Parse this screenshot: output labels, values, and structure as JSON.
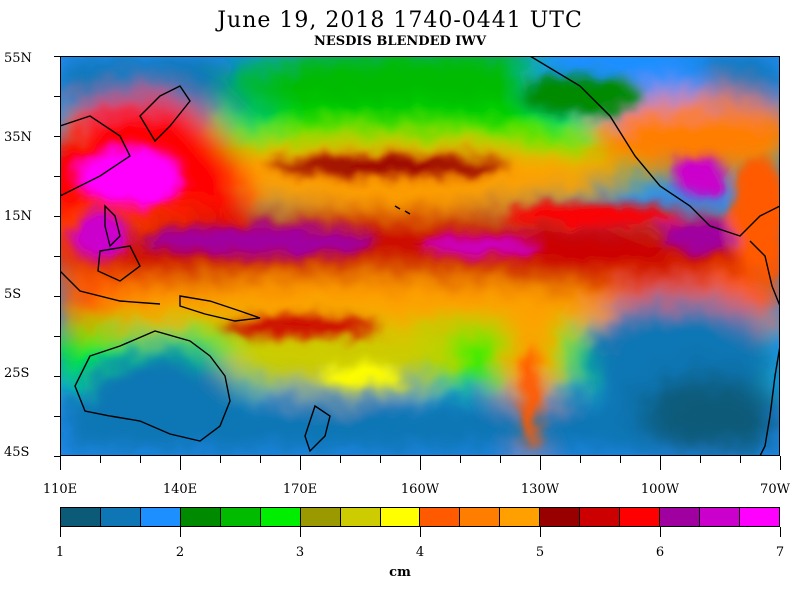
{
  "title": "June 19, 2018  1740-0441 UTC",
  "subtitle": "NESDIS BLENDED IWV",
  "lat_labels": [
    "55N",
    "35N",
    "15N",
    "5S",
    "25S",
    "45S"
  ],
  "lon_labels": [
    "110E",
    "140E",
    "170E",
    "160W",
    "130W",
    "100W",
    "70W"
  ],
  "colorbar": {
    "colors": [
      "#0b5a78",
      "#0e76b4",
      "#1e8fff",
      "#008a00",
      "#00bb00",
      "#00ee00",
      "#9a9a00",
      "#cccc00",
      "#ffff00",
      "#ff5a00",
      "#ff7e00",
      "#ffa000",
      "#980000",
      "#cc0000",
      "#ff0000",
      "#a000a0",
      "#cc00cc",
      "#ff00ff"
    ],
    "labels": [
      "1",
      "2",
      "3",
      "4",
      "5",
      "6",
      "7"
    ],
    "units": "cm"
  }
}
